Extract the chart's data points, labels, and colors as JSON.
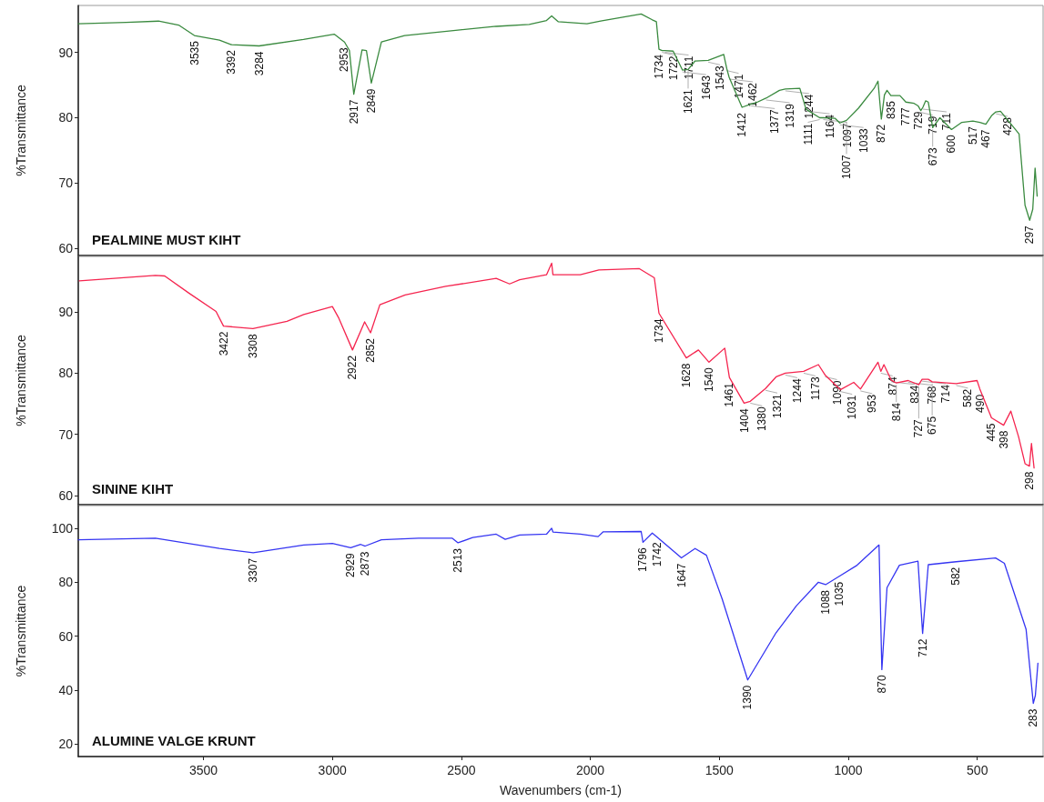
{
  "chart_data": [
    {
      "type": "line",
      "title": "PEALMINE MUST KIHT",
      "ylabel": "%Transmittance",
      "xlim": [
        3985,
        245
      ],
      "xticks": [
        3500,
        3000,
        2500,
        2000,
        1500,
        1000,
        500
      ],
      "ylim": [
        58.9,
        97.2
      ],
      "yticks": [
        60,
        70,
        80,
        90
      ],
      "tick_labels": "y",
      "grid": false,
      "marker": "none",
      "line_style": "solid",
      "x": [
        3985,
        3800,
        3674,
        3596,
        3535,
        3438,
        3392,
        3284,
        3112,
        2993,
        2953,
        2934,
        2917,
        2885,
        2868,
        2849,
        2810,
        2720,
        2522,
        2365,
        2237,
        2170,
        2150,
        2124,
        2013,
        1960,
        1803,
        1760,
        1744,
        1734,
        1722,
        1711,
        1679,
        1643,
        1621,
        1594,
        1543,
        1483,
        1471,
        1462,
        1412,
        1377,
        1358,
        1319,
        1267,
        1244,
        1188,
        1164,
        1111,
        1097,
        1051,
        1033,
        1007,
        960,
        900,
        885,
        872,
        860,
        850,
        835,
        800,
        777,
        745,
        729,
        719,
        711,
        700,
        690,
        673,
        645,
        600,
        560,
        517,
        490,
        467,
        445,
        428,
        410,
        338,
        315,
        297,
        285,
        276,
        268
      ],
      "series": [
        {
          "color": "#3a8a3f",
          "values": [
            94.4,
            94.6,
            94.8,
            94.2,
            92.6,
            91.9,
            91.2,
            91.0,
            92.0,
            92.8,
            91.6,
            90.3,
            83.6,
            90.4,
            90.3,
            85.3,
            91.6,
            92.6,
            93.4,
            94.0,
            94.3,
            94.9,
            95.6,
            94.7,
            94.4,
            94.8,
            95.9,
            95.0,
            94.7,
            90.5,
            90.3,
            90.3,
            90.2,
            87.3,
            87.4,
            88.7,
            88.8,
            89.7,
            87.5,
            86.2,
            81.6,
            82.1,
            82.3,
            83.0,
            84.2,
            84.4,
            84.5,
            81.3,
            80.0,
            80.0,
            79.9,
            79.2,
            79.6,
            81.5,
            84.5,
            85.6,
            79.8,
            83.5,
            84.2,
            83.4,
            83.4,
            82.4,
            82.2,
            81.8,
            81.1,
            81.6,
            82.6,
            82.4,
            78.5,
            80.0,
            78.2,
            79.3,
            79.5,
            79.3,
            79.0,
            80.3,
            80.9,
            81.0,
            77.5,
            66.6,
            64.3,
            66.0,
            72.3,
            68.0
          ]
        }
      ],
      "annotations": [
        {
          "text": "3535",
          "x": 3535,
          "y": 92.6
        },
        {
          "text": "3392",
          "x": 3392,
          "y": 91.2
        },
        {
          "text": "3284",
          "x": 3284,
          "y": 91.0
        },
        {
          "text": "2953",
          "x": 2953,
          "y": 91.6
        },
        {
          "text": "2917",
          "x": 2917,
          "y": 83.6
        },
        {
          "text": "2849",
          "x": 2849,
          "y": 85.3
        },
        {
          "text": "1734",
          "x": 1734,
          "y": 90.5
        },
        {
          "text": "1722",
          "x": 1722,
          "y": 90.3
        },
        {
          "text": "1711",
          "x": 1711,
          "y": 90.3
        },
        {
          "text": "1643",
          "x": 1643,
          "y": 87.3
        },
        {
          "text": "1621",
          "x": 1621,
          "y": 87.4
        },
        {
          "text": "1543",
          "x": 1543,
          "y": 88.8
        },
        {
          "text": "1471",
          "x": 1471,
          "y": 87.5
        },
        {
          "text": "1462",
          "x": 1462,
          "y": 86.2
        },
        {
          "text": "1412",
          "x": 1412,
          "y": 81.6
        },
        {
          "text": "1377",
          "x": 1377,
          "y": 82.1
        },
        {
          "text": "1319",
          "x": 1319,
          "y": 83.0
        },
        {
          "text": "1244",
          "x": 1244,
          "y": 84.4
        },
        {
          "text": "1164",
          "x": 1164,
          "y": 81.3
        },
        {
          "text": "1111",
          "x": 1111,
          "y": 80.0
        },
        {
          "text": "1097",
          "x": 1097,
          "y": 80.0
        },
        {
          "text": "1033",
          "x": 1033,
          "y": 79.2
        },
        {
          "text": "1007",
          "x": 1007,
          "y": 79.6
        },
        {
          "text": "872",
          "x": 872,
          "y": 79.8
        },
        {
          "text": "835",
          "x": 835,
          "y": 83.4
        },
        {
          "text": "777",
          "x": 777,
          "y": 82.4
        },
        {
          "text": "729",
          "x": 729,
          "y": 81.8
        },
        {
          "text": "719",
          "x": 719,
          "y": 81.1
        },
        {
          "text": "711",
          "x": 711,
          "y": 81.6
        },
        {
          "text": "673",
          "x": 673,
          "y": 78.5
        },
        {
          "text": "600",
          "x": 600,
          "y": 78.2
        },
        {
          "text": "517",
          "x": 517,
          "y": 79.5
        },
        {
          "text": "467",
          "x": 467,
          "y": 79.0
        },
        {
          "text": "428",
          "x": 428,
          "y": 80.9
        },
        {
          "text": "297",
          "x": 297,
          "y": 64.3
        }
      ]
    },
    {
      "type": "line",
      "title": "SININE KIHT",
      "ylabel": "%Transmittance",
      "xlim": [
        3985,
        245
      ],
      "xticks": [
        3500,
        3000,
        2500,
        2000,
        1500,
        1000,
        500
      ],
      "ylim": [
        58.5,
        99.1
      ],
      "yticks": [
        60,
        70,
        80,
        90
      ],
      "tick_labels": "y",
      "grid": false,
      "marker": "none",
      "line_style": "solid",
      "x": [
        3981,
        3686,
        3650,
        3556,
        3451,
        3422,
        3308,
        3176,
        3111,
        3000,
        2975,
        2922,
        2875,
        2852,
        2816,
        2718,
        2561,
        2365,
        2313,
        2274,
        2170,
        2150,
        2145,
        2039,
        1967,
        1810,
        1752,
        1734,
        1628,
        1581,
        1540,
        1479,
        1461,
        1404,
        1380,
        1321,
        1280,
        1244,
        1173,
        1116,
        1090,
        1031,
        979,
        953,
        885,
        874,
        862,
        834,
        814,
        768,
        727,
        714,
        690,
        675,
        582,
        501,
        490,
        445,
        398,
        370,
        340,
        315,
        298,
        290,
        280
      ],
      "series": [
        {
          "color": "#f5254f",
          "values": [
            95.1,
            96.0,
            95.9,
            93.1,
            90.1,
            87.7,
            87.3,
            88.5,
            89.6,
            90.9,
            89.0,
            83.8,
            88.4,
            86.6,
            91.2,
            92.8,
            94.2,
            95.5,
            94.6,
            95.3,
            96.1,
            98.0,
            96.1,
            96.1,
            96.9,
            97.1,
            95.6,
            89.8,
            82.5,
            83.8,
            81.8,
            84.1,
            79.3,
            75.1,
            75.4,
            77.5,
            79.4,
            80.0,
            80.3,
            81.4,
            79.7,
            77.3,
            78.5,
            77.4,
            81.8,
            80.3,
            81.4,
            78.9,
            78.4,
            78.8,
            78.1,
            79.0,
            79.0,
            78.6,
            78.3,
            78.8,
            77.4,
            72.7,
            71.5,
            73.8,
            69.6,
            65.2,
            64.8,
            68.5,
            64.5
          ]
        }
      ],
      "annotations": [
        {
          "text": "3422",
          "x": 3422,
          "y": 87.7
        },
        {
          "text": "3308",
          "x": 3308,
          "y": 87.3
        },
        {
          "text": "2922",
          "x": 2922,
          "y": 83.8
        },
        {
          "text": "2852",
          "x": 2852,
          "y": 86.6
        },
        {
          "text": "1734",
          "x": 1734,
          "y": 89.8
        },
        {
          "text": "1628",
          "x": 1628,
          "y": 82.5
        },
        {
          "text": "1540",
          "x": 1540,
          "y": 81.8
        },
        {
          "text": "1461",
          "x": 1461,
          "y": 79.3
        },
        {
          "text": "1404",
          "x": 1404,
          "y": 75.1
        },
        {
          "text": "1380",
          "x": 1380,
          "y": 75.4
        },
        {
          "text": "1321",
          "x": 1321,
          "y": 77.5
        },
        {
          "text": "1244",
          "x": 1244,
          "y": 80.0
        },
        {
          "text": "1173",
          "x": 1173,
          "y": 80.3
        },
        {
          "text": "1090",
          "x": 1090,
          "y": 79.7
        },
        {
          "text": "1031",
          "x": 1031,
          "y": 77.3
        },
        {
          "text": "953",
          "x": 953,
          "y": 77.4
        },
        {
          "text": "874",
          "x": 874,
          "y": 80.3
        },
        {
          "text": "834",
          "x": 834,
          "y": 78.9
        },
        {
          "text": "814",
          "x": 814,
          "y": 78.4
        },
        {
          "text": "768",
          "x": 768,
          "y": 78.8
        },
        {
          "text": "727",
          "x": 727,
          "y": 78.1
        },
        {
          "text": "714",
          "x": 714,
          "y": 79.0
        },
        {
          "text": "675",
          "x": 675,
          "y": 78.6
        },
        {
          "text": "582",
          "x": 582,
          "y": 78.3
        },
        {
          "text": "490",
          "x": 490,
          "y": 77.4
        },
        {
          "text": "445",
          "x": 445,
          "y": 72.7
        },
        {
          "text": "398",
          "x": 398,
          "y": 71.5
        },
        {
          "text": "298",
          "x": 298,
          "y": 64.8
        }
      ]
    },
    {
      "type": "line",
      "title": "ALUMINE VALGE KRUNT",
      "xlabel": "Wavenumbers (cm-1)",
      "ylabel": "%Transmittance",
      "xlim": [
        3985,
        245
      ],
      "xticks": [
        3500,
        3000,
        2500,
        2000,
        1500,
        1000,
        500
      ],
      "ylim": [
        15.4,
        108.4
      ],
      "yticks": [
        20,
        40,
        60,
        80,
        100
      ],
      "grid": false,
      "marker": "none",
      "line_style": "solid",
      "x": [
        3985,
        3686,
        3438,
        3307,
        3111,
        3000,
        2929,
        2890,
        2873,
        2810,
        2666,
        2535,
        2513,
        2456,
        2365,
        2330,
        2274,
        2170,
        2150,
        2145,
        2039,
        1970,
        1950,
        1803,
        1796,
        1760,
        1742,
        1647,
        1594,
        1550,
        1489,
        1390,
        1280,
        1201,
        1116,
        1088,
        1035,
        966,
        881,
        870,
        850,
        802,
        730,
        712,
        690,
        582,
        429,
        395,
        311,
        283,
        275,
        265
      ],
      "series": [
        {
          "color": "#3535f2",
          "values": [
            95.7,
            96.3,
            92.5,
            90.9,
            93.8,
            94.4,
            92.8,
            94.0,
            93.4,
            95.7,
            96.3,
            96.3,
            94.6,
            96.6,
            97.8,
            95.9,
            97.5,
            97.8,
            100.0,
            98.6,
            97.8,
            96.9,
            98.7,
            98.8,
            94.8,
            98.2,
            96.8,
            89.0,
            92.5,
            90.0,
            73.8,
            43.8,
            61.3,
            71.3,
            80.0,
            79.1,
            82.2,
            86.3,
            93.8,
            47.6,
            78.0,
            86.3,
            87.8,
            61.0,
            86.5,
            87.6,
            89.0,
            87.0,
            62.6,
            35.1,
            38.0,
            50.0
          ]
        }
      ],
      "annotations": [
        {
          "text": "3307",
          "x": 3307,
          "y": 90.9
        },
        {
          "text": "2929",
          "x": 2929,
          "y": 92.8
        },
        {
          "text": "2873",
          "x": 2873,
          "y": 93.4
        },
        {
          "text": "2513",
          "x": 2513,
          "y": 94.6
        },
        {
          "text": "1796",
          "x": 1796,
          "y": 94.8
        },
        {
          "text": "1742",
          "x": 1742,
          "y": 96.8
        },
        {
          "text": "1647",
          "x": 1647,
          "y": 89.0
        },
        {
          "text": "1390",
          "x": 1390,
          "y": 43.8
        },
        {
          "text": "1088",
          "x": 1088,
          "y": 79.1
        },
        {
          "text": "1035",
          "x": 1035,
          "y": 82.2
        },
        {
          "text": "870",
          "x": 870,
          "y": 47.6
        },
        {
          "text": "712",
          "x": 712,
          "y": 61.0
        },
        {
          "text": "582",
          "x": 582,
          "y": 87.6
        },
        {
          "text": "283",
          "x": 283,
          "y": 35.1
        }
      ]
    }
  ]
}
